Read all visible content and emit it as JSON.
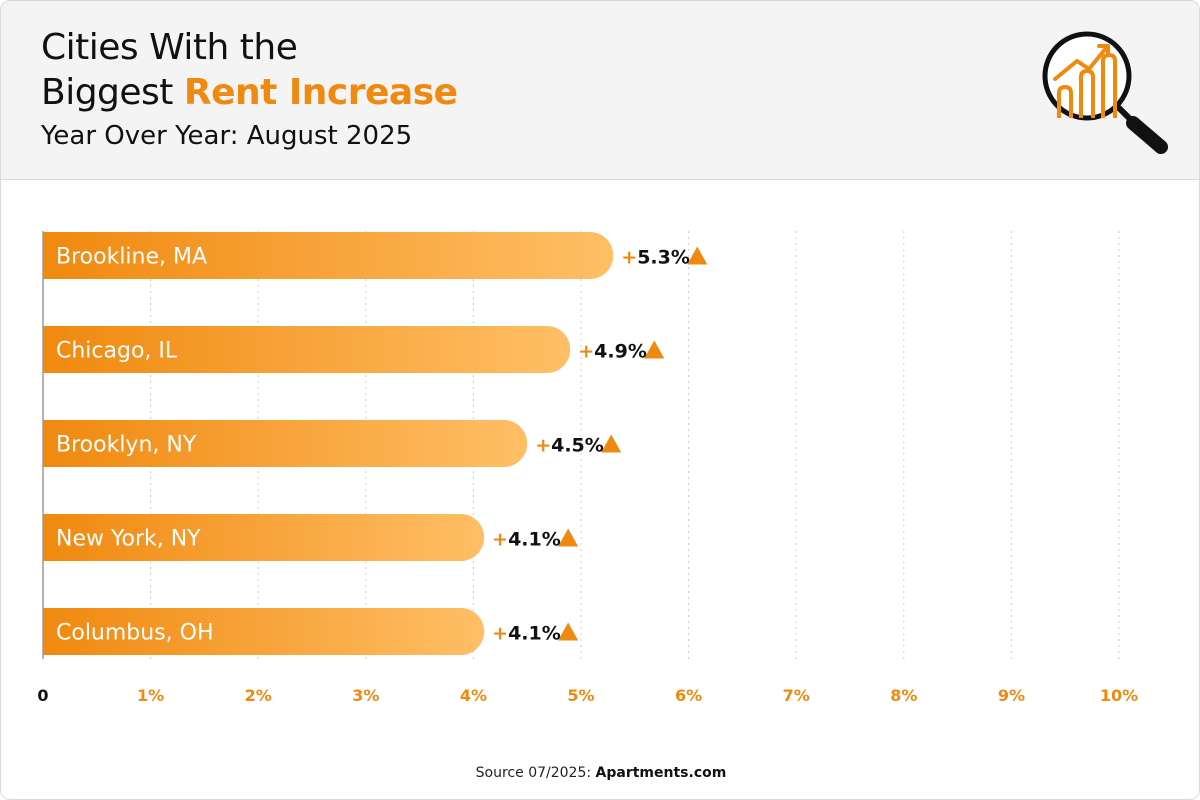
{
  "header": {
    "title_line1": "Cities With the",
    "title_line2_prefix": "Biggest ",
    "title_line2_accent": "Rent Increase",
    "subtitle": "Year Over Year: August 2025",
    "icon": "magnifier-chart-icon"
  },
  "colors": {
    "accent": "#f0890f",
    "bar_start": "#f0890f",
    "bar_end": "#ffbf66",
    "grid": "#cccccc",
    "text": "#111111",
    "header_bg": "#f4f4f4"
  },
  "chart_data": {
    "type": "bar",
    "orientation": "horizontal",
    "categories": [
      "Brookline, MA",
      "Chicago, IL",
      "Brooklyn, NY",
      "New York, NY",
      "Columbus, OH"
    ],
    "values": [
      5.3,
      4.9,
      4.5,
      4.1,
      4.1
    ],
    "value_labels": [
      "+5.3%",
      "+4.9%",
      "+4.5%",
      "+4.1%",
      "+4.1%"
    ],
    "xlim": [
      0,
      10
    ],
    "x_ticks": [
      0,
      1,
      2,
      3,
      4,
      5,
      6,
      7,
      8,
      9,
      10
    ],
    "x_tick_labels": [
      "0",
      "1%",
      "2%",
      "3%",
      "4%",
      "5%",
      "6%",
      "7%",
      "8%",
      "9%",
      "10%"
    ],
    "grid": true,
    "grid_style": "dotted vertical"
  },
  "footer": {
    "source_prefix": "Source 07/2025: ",
    "source_brand": "Apartments.com"
  }
}
